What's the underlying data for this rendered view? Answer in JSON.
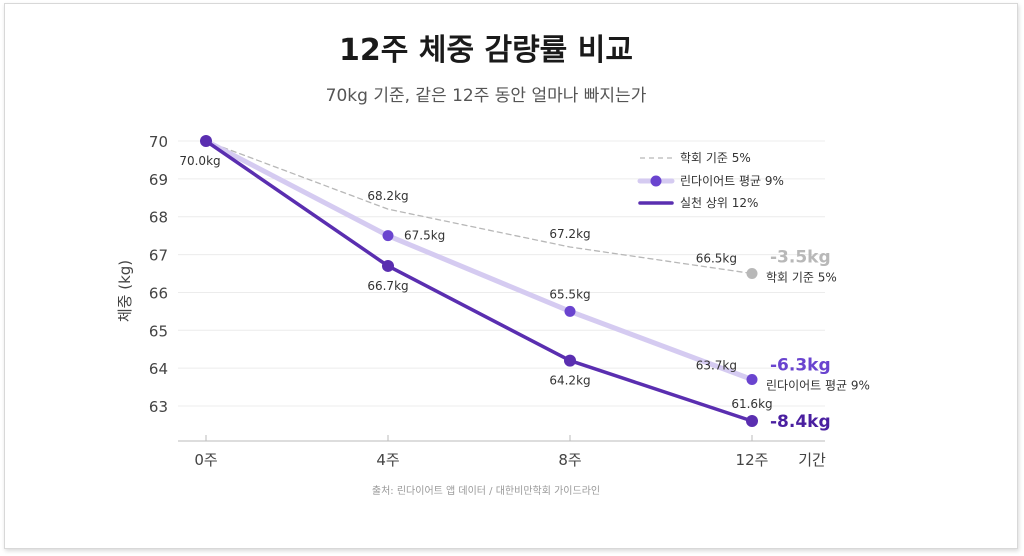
{
  "chart_data": {
    "type": "line",
    "title": "12주 체중 감량률 비교",
    "subtitle": "70kg 기준, 같은 12주 동안 얼마나 빠지는가",
    "ylabel": "체중 (kg)",
    "xlabel": "기간",
    "x": [
      0,
      4,
      8,
      12
    ],
    "x_tick_labels": [
      "0주",
      "4주",
      "8주",
      "12주"
    ],
    "y_ticks": [
      63,
      64,
      65,
      66,
      67,
      68,
      69,
      70
    ],
    "ylim": [
      62.1,
      70
    ],
    "grid": true,
    "legend_placement": "top-right",
    "series": [
      {
        "name": "학회 기준 5%",
        "values": [
          70.0,
          68.2,
          67.2,
          66.5
        ],
        "labels": [
          "",
          "68.2kg",
          "67.2kg",
          "66.5kg"
        ],
        "style": "dashed",
        "color": "#b8b8b8",
        "end_change": "-3.5kg",
        "end_name": "학회 기준 5%"
      },
      {
        "name": "린다이어트 평균 9%",
        "values": [
          70.0,
          67.5,
          65.5,
          63.7
        ],
        "labels": [
          "",
          "67.5kg",
          "65.5kg",
          "63.7kg"
        ],
        "style": "light",
        "color": "#d5cbf1",
        "marker_color": "#6a44cf",
        "end_change": "-6.3kg",
        "end_change_color": "#6a44cf",
        "end_name": "린다이어트 평균 9%"
      },
      {
        "name": "실천 상위 12%",
        "values": [
          70.0,
          66.7,
          64.2,
          61.6
        ],
        "labels": [
          "70.0kg",
          "66.7kg",
          "64.2kg",
          "61.6kg"
        ],
        "style": "solid",
        "color": "#5a2eb0",
        "end_change": "-8.4kg",
        "end_change_color": "#4a1fa0"
      }
    ],
    "source": "출처: 린다이어트 앱 데이터 / 대한비만학회 가이드라인"
  }
}
